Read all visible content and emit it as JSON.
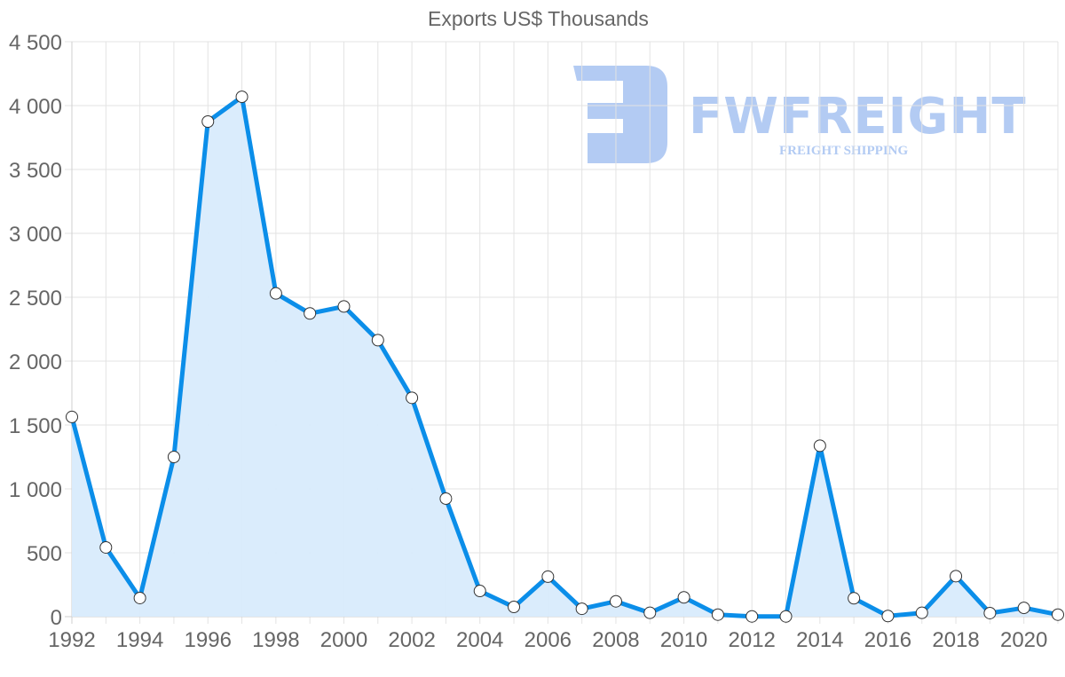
{
  "chart_data": {
    "type": "area",
    "title": "Exports US$ Thousands",
    "xlabel": "",
    "ylabel": "",
    "ylim": [
      0,
      4500
    ],
    "yticks": [
      0,
      500,
      1000,
      1500,
      2000,
      2500,
      3000,
      3500,
      4000,
      4500
    ],
    "ytick_labels": [
      "0",
      "500",
      "1 000",
      "1 500",
      "2 000",
      "2 500",
      "3 000",
      "3 500",
      "4 000",
      "4 500"
    ],
    "xtick_labels": [
      "1992",
      "1994",
      "1996",
      "1998",
      "2000",
      "2002",
      "2004",
      "2006",
      "2008",
      "2010",
      "2012",
      "2014",
      "2016",
      "2018",
      "2020"
    ],
    "grid": true,
    "legend": "none",
    "x": [
      1992,
      1993,
      1994,
      1995,
      1996,
      1997,
      1998,
      1999,
      2000,
      2001,
      2002,
      2003,
      2004,
      2005,
      2006,
      2007,
      2008,
      2009,
      2010,
      2011,
      2012,
      2013,
      2014,
      2015,
      2016,
      2017,
      2018,
      2019,
      2020,
      2021
    ],
    "series": [
      {
        "name": "Exports",
        "values": [
          1563,
          542,
          146,
          1250,
          3875,
          4069,
          2530,
          2373,
          2428,
          2164,
          1713,
          924,
          201,
          76,
          313,
          62,
          120,
          30,
          151,
          16,
          2,
          2,
          1338,
          144,
          5,
          30,
          317,
          28,
          69,
          16
        ]
      }
    ],
    "colors": {
      "line": "#0b8ee9",
      "fill": "#d8ebfc",
      "grid": "#e3e3e3",
      "text": "#666666",
      "watermark": "#b3cbf3"
    }
  },
  "watermark": {
    "brand": "FWFREIGHT",
    "tagline": "FREIGHT SHIPPING"
  }
}
